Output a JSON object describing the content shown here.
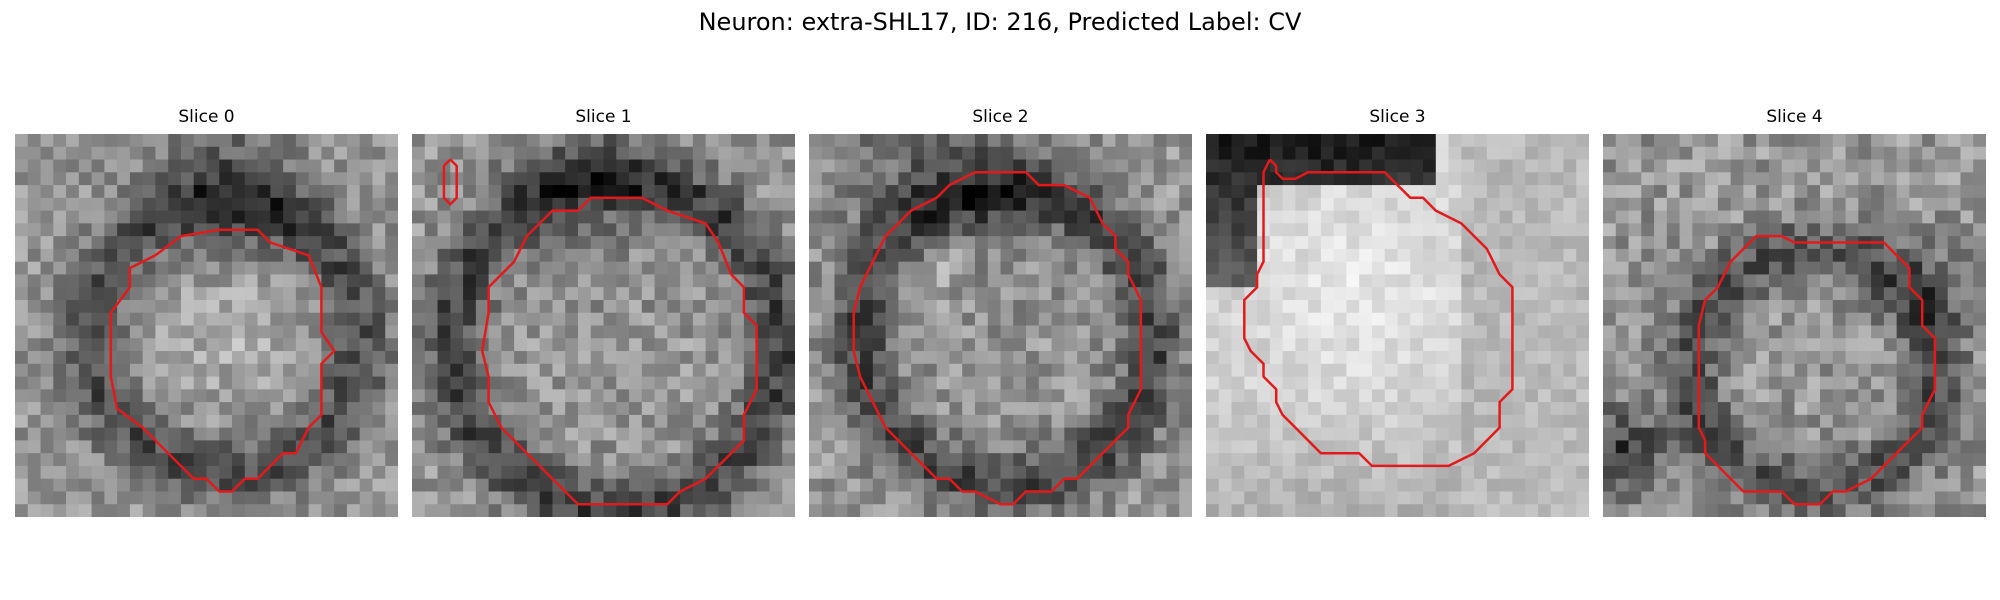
{
  "title": "Neuron: extra-SHL17, ID: 216, Predicted Label: CV",
  "panels": [
    {
      "label": "Slice 0"
    },
    {
      "label": "Slice 1"
    },
    {
      "label": "Slice 2"
    },
    {
      "label": "Slice 3"
    },
    {
      "label": "Slice 4"
    }
  ],
  "contour_color": "#e31a1c"
}
